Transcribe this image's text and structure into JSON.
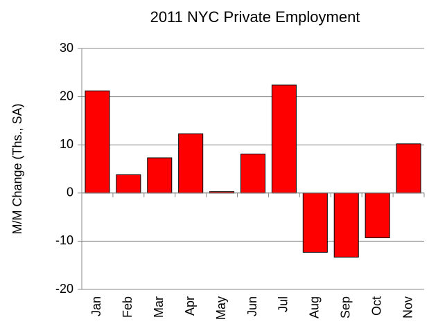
{
  "chart_data": {
    "type": "bar",
    "title": "2011 NYC Private Employment",
    "y_label": "M/M Change (Ths., SA)",
    "categories": [
      "Jan",
      "Feb",
      "Mar",
      "Apr",
      "May",
      "Jun",
      "Jul",
      "Aug",
      "Sep",
      "Oct",
      "Nov"
    ],
    "values": [
      21.2,
      3.8,
      7.3,
      12.3,
      0.3,
      8.1,
      22.4,
      -12.3,
      -13.3,
      -9.3,
      10.2
    ],
    "color": "#ff0000",
    "ylim": [
      -20,
      30
    ],
    "yticks": [
      -20,
      -10,
      0,
      10,
      20,
      30
    ],
    "grid": true
  }
}
